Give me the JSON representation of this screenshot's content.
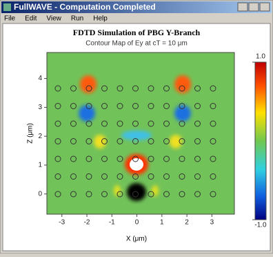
{
  "window": {
    "title": "FullWAVE - Computation Completed",
    "menu": [
      "File",
      "Edit",
      "View",
      "Run",
      "Help"
    ]
  },
  "plot": {
    "title": "FDTD Simulation of PBG Y-Branch",
    "subtitle": "Contour Map of Ey at cT = 10 μm",
    "xlabel": "X (μm)",
    "ylabel": "Z (μm)",
    "xlim": [
      -3.6,
      3.9
    ],
    "ylim": [
      -0.7,
      4.9
    ],
    "xticks": [
      -3,
      -2,
      -1,
      0,
      1,
      2,
      3
    ],
    "yticks": [
      0,
      1,
      2,
      3,
      4
    ],
    "colorbar": {
      "lim": [
        -1,
        1
      ],
      "ticks": [
        {
          "value": 1,
          "label": "1.0"
        },
        {
          "value": -1,
          "label": "-1.0"
        }
      ]
    }
  }
}
